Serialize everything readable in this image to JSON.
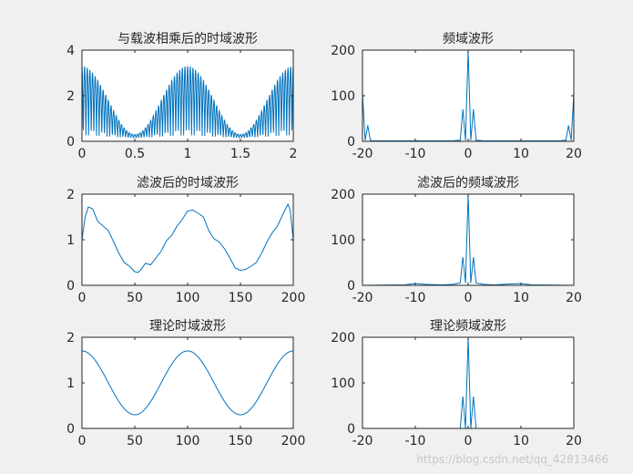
{
  "watermark": "https://blog.csdn.net/qq_42813466",
  "colors": {
    "figure_bg": "#f0f0f0",
    "axes_bg": "#ffffff",
    "line": "#0072bd",
    "axis": "#262626"
  },
  "chart_data": [
    {
      "id": "top-left",
      "type": "line",
      "title": "与载波相乘后的时域波形",
      "xlim": [
        0,
        2
      ],
      "ylim": [
        0,
        4
      ],
      "xticks": [
        0,
        0.5,
        1,
        1.5,
        2
      ],
      "yticks": [
        0,
        2,
        4
      ],
      "xtick_labels": [
        "0",
        "0.5",
        "1",
        "1.5",
        "2"
      ],
      "ytick_labels": [
        "0",
        "2",
        "4"
      ],
      "series": [
        {
          "kind": "modulated",
          "envelope": {
            "dc": 1.8,
            "amp": 1.5,
            "cycles": 2
          },
          "carrier_cycles": 80,
          "points": 900
        }
      ]
    },
    {
      "id": "top-right",
      "type": "line",
      "title": "频域波形",
      "xlim": [
        -20,
        20
      ],
      "ylim": [
        0,
        200
      ],
      "xticks": [
        -20,
        -10,
        0,
        10,
        20
      ],
      "yticks": [
        0,
        100,
        200
      ],
      "xtick_labels": [
        "-20",
        "-10",
        "0",
        "10",
        "20"
      ],
      "ytick_labels": [
        "0",
        "100",
        "200"
      ],
      "series": [
        {
          "x": [
            -20,
            -19.5,
            -19,
            -18.5,
            -18,
            -17.5,
            -17,
            -16,
            -5,
            -3,
            -2,
            -1.5,
            -1,
            -0.5,
            0,
            0.5,
            1,
            1.5,
            2,
            3,
            5,
            16,
            17,
            17.5,
            18,
            18.5,
            19,
            19.5,
            20
          ],
          "y": [
            105,
            2,
            35,
            2,
            1,
            1,
            1,
            1,
            1,
            1,
            2,
            2,
            70,
            2,
            200,
            2,
            70,
            2,
            2,
            1,
            1,
            1,
            1,
            1,
            2,
            2,
            35,
            2,
            105
          ]
        }
      ]
    },
    {
      "id": "middle-left",
      "type": "line",
      "title": "滤波后的时域波形",
      "xlim": [
        0,
        200
      ],
      "ylim": [
        0,
        2
      ],
      "xticks": [
        0,
        50,
        100,
        150,
        200
      ],
      "yticks": [
        0,
        1,
        2
      ],
      "xtick_labels": [
        "0",
        "50",
        "100",
        "150",
        "200"
      ],
      "ytick_labels": [
        "0",
        "1",
        "2"
      ],
      "series": [
        {
          "x": [
            0,
            3,
            6,
            10,
            15,
            20,
            25,
            30,
            35,
            40,
            45,
            50,
            53,
            56,
            60,
            65,
            70,
            75,
            80,
            85,
            90,
            95,
            100,
            105,
            110,
            115,
            120,
            125,
            130,
            135,
            140,
            145,
            150,
            155,
            160,
            165,
            170,
            175,
            180,
            185,
            190,
            195,
            197,
            200
          ],
          "y": [
            1.0,
            1.5,
            1.72,
            1.68,
            1.4,
            1.3,
            1.2,
            0.95,
            0.7,
            0.5,
            0.42,
            0.3,
            0.28,
            0.35,
            0.48,
            0.45,
            0.6,
            0.75,
            0.98,
            1.1,
            1.3,
            1.45,
            1.63,
            1.65,
            1.58,
            1.5,
            1.2,
            1.02,
            0.95,
            0.8,
            0.6,
            0.38,
            0.33,
            0.35,
            0.42,
            0.5,
            0.7,
            0.95,
            1.15,
            1.3,
            1.55,
            1.78,
            1.65,
            1.0
          ]
        }
      ]
    },
    {
      "id": "middle-right",
      "type": "line",
      "title": "滤波后的频域波形",
      "xlim": [
        -20,
        20
      ],
      "ylim": [
        0,
        200
      ],
      "xticks": [
        -20,
        -10,
        0,
        10,
        20
      ],
      "yticks": [
        0,
        100,
        200
      ],
      "xtick_labels": [
        "-20",
        "-10",
        "0",
        "10",
        "20"
      ],
      "ytick_labels": [
        "0",
        "100",
        "200"
      ],
      "series": [
        {
          "x": [
            -20,
            -12,
            -10,
            -8,
            -5,
            -3,
            -2,
            -1.5,
            -1,
            -0.5,
            0,
            0.5,
            1,
            1.5,
            2,
            3,
            5,
            8,
            10,
            12,
            20
          ],
          "y": [
            0,
            1,
            4,
            2,
            1,
            2,
            4,
            5,
            62,
            5,
            200,
            5,
            62,
            5,
            4,
            2,
            1,
            3,
            4,
            1,
            0
          ]
        }
      ]
    },
    {
      "id": "bottom-left",
      "type": "line",
      "title": "理论时域波形",
      "xlim": [
        0,
        200
      ],
      "ylim": [
        0,
        2
      ],
      "xticks": [
        0,
        50,
        100,
        150,
        200
      ],
      "yticks": [
        0,
        1,
        2
      ],
      "xtick_labels": [
        "0",
        "50",
        "100",
        "150",
        "200"
      ],
      "ytick_labels": [
        "0",
        "1",
        "2"
      ],
      "series": [
        {
          "kind": "cosine",
          "dc": 1.0,
          "amp": 0.7,
          "period": 100,
          "points": 300
        }
      ]
    },
    {
      "id": "bottom-right",
      "type": "line",
      "title": "理论频域波形",
      "xlim": [
        -20,
        20
      ],
      "ylim": [
        0,
        200
      ],
      "xticks": [
        -20,
        -10,
        0,
        10,
        20
      ],
      "yticks": [
        0,
        100,
        200
      ],
      "xtick_labels": [
        "-20",
        "-10",
        "0",
        "10",
        "20"
      ],
      "ytick_labels": [
        "0",
        "100",
        "200"
      ],
      "series": [
        {
          "x": [
            -20,
            -2,
            -1.5,
            -1,
            -0.5,
            0,
            0.5,
            1,
            1.5,
            2,
            20
          ],
          "y": [
            0,
            0,
            0,
            70,
            0,
            200,
            0,
            70,
            0,
            0,
            0
          ]
        }
      ]
    }
  ]
}
